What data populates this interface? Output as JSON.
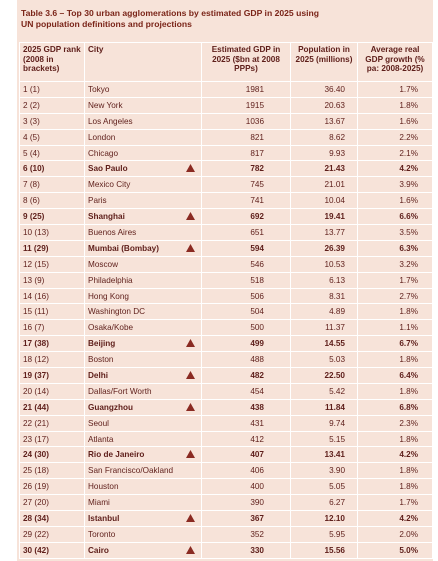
{
  "title": "Table 3.6 – Top 30 urban agglomerations by estimated GDP in 2025 using UN population definitions and projections",
  "table": {
    "header": [
      "2025 GDP rank (2008 in brackets)",
      "City",
      "Estimated GDP in 2025 ($bn at 2008 PPPs)",
      "Population in 2025 (millions)",
      "Average real GDP growth (% pa: 2008-2025)"
    ],
    "rows": [
      {
        "cells": [
          "1 (1)",
          "Tokyo",
          1981,
          "36.40",
          "1.7%"
        ],
        "bold": false
      },
      {
        "cells": [
          "2 (2)",
          "New York",
          1915,
          "20.63",
          "1.8%"
        ],
        "bold": false
      },
      {
        "cells": [
          "3 (3)",
          "Los Angeles",
          1036,
          "13.67",
          "1.6%"
        ],
        "bold": false
      },
      {
        "cells": [
          "4 (5)",
          "London",
          821,
          "8.62",
          "2.2%"
        ],
        "bold": false
      },
      {
        "cells": [
          "5 (4)",
          "Chicago",
          817,
          "9.93",
          "2.1%"
        ],
        "bold": false
      },
      {
        "cells": [
          "6 (10)",
          "Sao Paulo",
          782,
          "21.43",
          "4.2%"
        ],
        "bold": true
      },
      {
        "cells": [
          "7 (8)",
          "Mexico City",
          745,
          "21.01",
          "3.9%"
        ],
        "bold": false
      },
      {
        "cells": [
          "8 (6)",
          "Paris",
          741,
          "10.04",
          "1.6%"
        ],
        "bold": false
      },
      {
        "cells": [
          "9 (25)",
          "Shanghai",
          692,
          "19.41",
          "6.6%"
        ],
        "bold": true
      },
      {
        "cells": [
          "10 (13)",
          "Buenos Aires",
          651,
          "13.77",
          "3.5%"
        ],
        "bold": false
      },
      {
        "cells": [
          "11 (29)",
          "Mumbai (Bombay)",
          594,
          "26.39",
          "6.3%"
        ],
        "bold": true
      },
      {
        "cells": [
          "12 (15)",
          "Moscow",
          546,
          "10.53",
          "3.2%"
        ],
        "bold": false
      },
      {
        "cells": [
          "13 (9)",
          "Philadelphia",
          518,
          "6.13",
          "1.7%"
        ],
        "bold": false
      },
      {
        "cells": [
          "14 (16)",
          "Hong Kong",
          506,
          "8.31",
          "2.7%"
        ],
        "bold": false
      },
      {
        "cells": [
          "15 (11)",
          "Washington DC",
          504,
          "4.89",
          "1.8%"
        ],
        "bold": false
      },
      {
        "cells": [
          "16 (7)",
          "Osaka/Kobe",
          500,
          "11.37",
          "1.1%"
        ],
        "bold": false
      },
      {
        "cells": [
          "17 (38)",
          "Beijing",
          499,
          "14.55",
          "6.7%"
        ],
        "bold": true
      },
      {
        "cells": [
          "18 (12)",
          "Boston",
          488,
          "5.03",
          "1.8%"
        ],
        "bold": false
      },
      {
        "cells": [
          "19 (37)",
          "Delhi",
          482,
          "22.50",
          "6.4%"
        ],
        "bold": true
      },
      {
        "cells": [
          "20 (14)",
          "Dallas/Fort Worth",
          454,
          "5.42",
          "1.8%"
        ],
        "bold": false
      },
      {
        "cells": [
          "21 (44)",
          "Guangzhou",
          438,
          "11.84",
          "6.8%"
        ],
        "bold": true
      },
      {
        "cells": [
          "22 (21)",
          "Seoul",
          431,
          "9.74",
          "2.3%"
        ],
        "bold": false
      },
      {
        "cells": [
          "23 (17)",
          "Atlanta",
          412,
          "5.15",
          "1.8%"
        ],
        "bold": false
      },
      {
        "cells": [
          "24 (30)",
          "Rio de Janeiro",
          407,
          "13.41",
          "4.2%"
        ],
        "bold": true
      },
      {
        "cells": [
          "25 (18)",
          "San Francisco/Oakland",
          406,
          "3.90",
          "1.8%"
        ],
        "bold": false
      },
      {
        "cells": [
          "26 (19)",
          "Houston",
          400,
          "5.05",
          "1.8%"
        ],
        "bold": false
      },
      {
        "cells": [
          "27 (20)",
          "Miami",
          390,
          "6.27",
          "1.7%"
        ],
        "bold": false
      },
      {
        "cells": [
          "28 (34)",
          "Istanbul",
          367,
          "12.10",
          "4.2%"
        ],
        "bold": true
      },
      {
        "cells": [
          "29 (22)",
          "Toronto",
          352,
          "5.95",
          "2.0%"
        ],
        "bold": false
      },
      {
        "cells": [
          "30 (42)",
          "Cairo",
          330,
          "15.56",
          "5.0%"
        ],
        "bold": true
      }
    ]
  }
}
